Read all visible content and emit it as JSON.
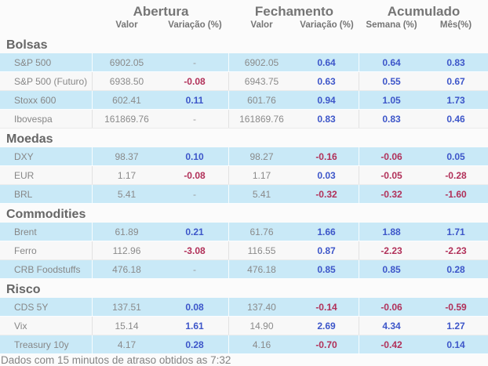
{
  "chart_data": {
    "type": "table",
    "column_groups": [
      "Abertura",
      "Fechamento",
      "Acumulado"
    ],
    "columns": [
      "",
      "Valor",
      "Variação (%)",
      "Valor",
      "Variação (%)",
      "Semana (%)",
      "Mês(%)"
    ],
    "sections": [
      {
        "title": "Bolsas",
        "rows": [
          {
            "label": "S&P 500",
            "open_value": "6902.05",
            "open_variation": "-",
            "close_value": "6902.05",
            "close_variation": "0.64",
            "week_variation": "0.64",
            "month_variation": "0.83"
          },
          {
            "label": "S&P 500 (Futuro)",
            "open_value": "6938.50",
            "open_variation": "-0.08",
            "close_value": "6943.75",
            "close_variation": "0.63",
            "week_variation": "0.55",
            "month_variation": "0.67"
          },
          {
            "label": "Stoxx 600",
            "open_value": "602.41",
            "open_variation": "0.11",
            "close_value": "601.76",
            "close_variation": "0.94",
            "week_variation": "1.05",
            "month_variation": "1.73"
          },
          {
            "label": "Ibovespa",
            "open_value": "161869.76",
            "open_variation": "-",
            "close_value": "161869.76",
            "close_variation": "0.83",
            "week_variation": "0.83",
            "month_variation": "0.46"
          }
        ]
      },
      {
        "title": "Moedas",
        "rows": [
          {
            "label": "DXY",
            "open_value": "98.37",
            "open_variation": "0.10",
            "close_value": "98.27",
            "close_variation": "-0.16",
            "week_variation": "-0.06",
            "month_variation": "0.05"
          },
          {
            "label": "EUR",
            "open_value": "1.17",
            "open_variation": "-0.08",
            "close_value": "1.17",
            "close_variation": "0.03",
            "week_variation": "-0.05",
            "month_variation": "-0.28"
          },
          {
            "label": "BRL",
            "open_value": "5.41",
            "open_variation": "-",
            "close_value": "5.41",
            "close_variation": "-0.32",
            "week_variation": "-0.32",
            "month_variation": "-1.60"
          }
        ]
      },
      {
        "title": "Commodities",
        "rows": [
          {
            "label": "Brent",
            "open_value": "61.89",
            "open_variation": "0.21",
            "close_value": "61.76",
            "close_variation": "1.66",
            "week_variation": "1.88",
            "month_variation": "1.71"
          },
          {
            "label": "Ferro",
            "open_value": "112.96",
            "open_variation": "-3.08",
            "close_value": "116.55",
            "close_variation": "0.87",
            "week_variation": "-2.23",
            "month_variation": "-2.23"
          },
          {
            "label": "CRB Foodstuffs",
            "open_value": "476.18",
            "open_variation": "-",
            "close_value": "476.18",
            "close_variation": "0.85",
            "week_variation": "0.85",
            "month_variation": "0.28"
          }
        ]
      },
      {
        "title": "Risco",
        "rows": [
          {
            "label": "CDS 5Y",
            "open_value": "137.51",
            "open_variation": "0.08",
            "close_value": "137.40",
            "close_variation": "-0.14",
            "week_variation": "-0.06",
            "month_variation": "-0.59"
          },
          {
            "label": "Vix",
            "open_value": "15.14",
            "open_variation": "1.61",
            "close_value": "14.90",
            "close_variation": "2.69",
            "week_variation": "4.34",
            "month_variation": "1.27"
          },
          {
            "label": "Treasury 10y",
            "open_value": "4.17",
            "open_variation": "0.28",
            "close_value": "4.16",
            "close_variation": "-0.70",
            "week_variation": "-0.42",
            "month_variation": "0.14"
          }
        ]
      }
    ]
  },
  "footer": {
    "note": "Dados com 15 minutos de atraso obtidos as 7:32"
  },
  "colors": {
    "positive_value": "#3d56c9",
    "negative_value": "#b13059",
    "neutral_value": "#999999",
    "highlight_row": "#c9e9f7",
    "plain_row": "#f8f8f8",
    "header_text": "#757575",
    "section_title": "#666666",
    "footer_text": "#848484"
  }
}
